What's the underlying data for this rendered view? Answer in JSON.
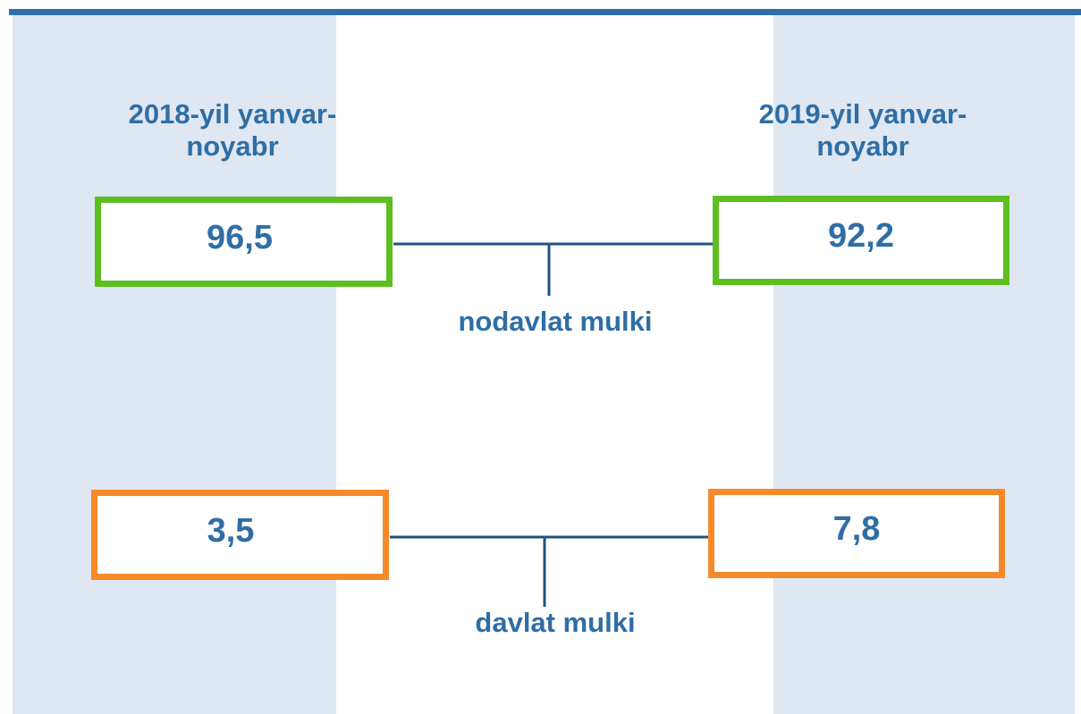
{
  "columns": [
    {
      "header": [
        "2018-yil yanvar-",
        "noyabr"
      ]
    },
    {
      "header": [
        "2019-yil yanvar-",
        "noyabr"
      ]
    }
  ],
  "groups": [
    {
      "label": "nodavlat mulki",
      "values": [
        "96,5",
        "92,2"
      ]
    },
    {
      "label": "davlat mulki",
      "values": [
        "3,5",
        "7,8"
      ]
    }
  ]
}
